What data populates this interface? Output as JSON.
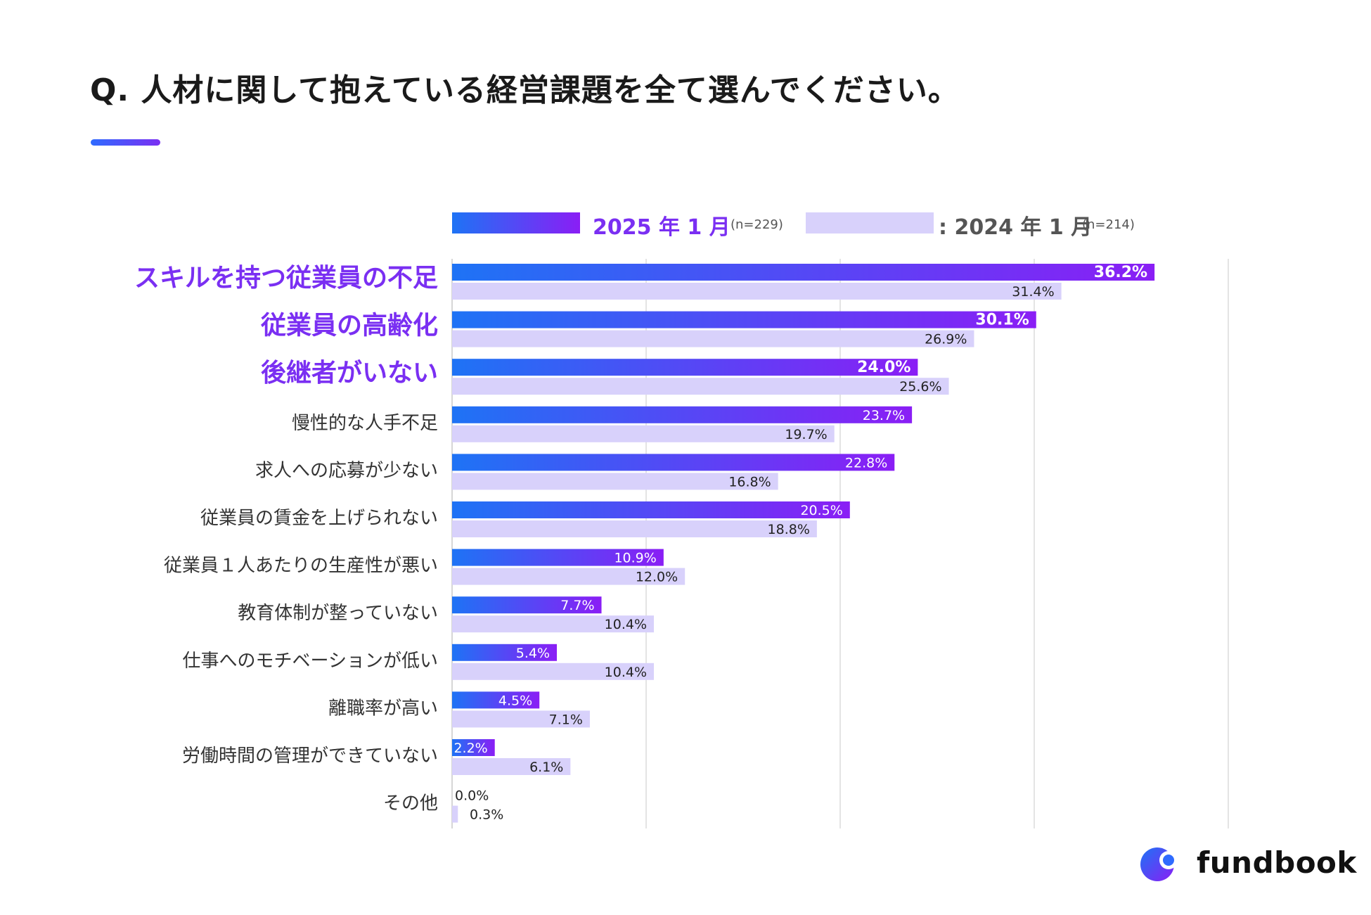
{
  "title": "Q. 人材に関して抱えている経営課題を全て選んでください。",
  "legend": {
    "series_2025": "2025 年 1 月",
    "n_2025": "(n=229)",
    "series_2024": ": 2024 年 1 月",
    "n_2024": "(n=214)"
  },
  "colors": {
    "bar2025_start": "#1e73f5",
    "bar2025_end": "#8a1ef5",
    "bar2024": "#d8d1fb",
    "highlight_label": "#7a2ff2",
    "grid": "#dcdcdc"
  },
  "chart_data": {
    "type": "bar",
    "orientation": "horizontal",
    "title": "Q. 人材に関して抱えている経営課題を全て選んでください。",
    "xlim": [
      0,
      40
    ],
    "grid": true,
    "legend_position": "top",
    "categories": [
      "スキルを持つ従業員の不足",
      "従業員の高齢化",
      "後継者がいない",
      "慢性的な人手不足",
      "求人への応募が少ない",
      "従業員の賃金を上げられない",
      "従業員１人あたりの生産性が悪い",
      "教育体制が整っていない",
      "仕事へのモチベーションが低い",
      "離職率が高い",
      "労働時間の管理ができていない",
      "その他"
    ],
    "highlighted_categories": [
      "スキルを持つ従業員の不足",
      "従業員の高齢化",
      "後継者がいない"
    ],
    "series": [
      {
        "name": "2025 年 1 月",
        "values": [
          36.2,
          30.1,
          24.0,
          23.7,
          22.8,
          20.5,
          10.9,
          7.7,
          5.4,
          4.5,
          2.2,
          0.0
        ],
        "labels": [
          "36.2%",
          "30.1%",
          "24.0%",
          "23.7%",
          "22.8%",
          "20.5%",
          "10.9%",
          "7.7%",
          "5.4%",
          "4.5%",
          "2.2%",
          "0.0%"
        ]
      },
      {
        "name": "2024 年 1 月",
        "values": [
          31.4,
          26.9,
          25.6,
          19.7,
          16.8,
          18.8,
          12.0,
          10.4,
          10.4,
          7.1,
          6.1,
          0.3
        ],
        "labels": [
          "31.4%",
          "26.9%",
          "25.6%",
          "19.7%",
          "16.8%",
          "18.8%",
          "12.0%",
          "10.4%",
          "10.4%",
          "7.1%",
          "6.1%",
          "0.3%"
        ]
      }
    ]
  },
  "brand": {
    "name": "fundbook"
  }
}
